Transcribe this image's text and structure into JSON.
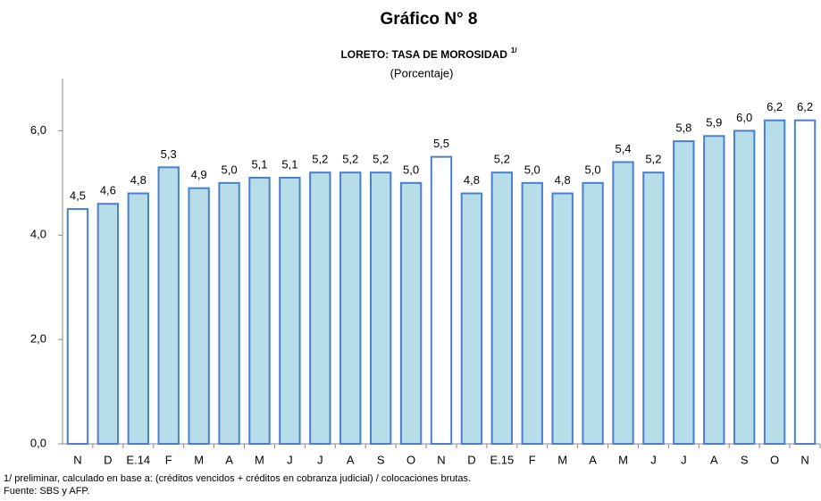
{
  "chart_data": {
    "type": "bar",
    "title": "Gráfico N° 8",
    "subtitle": "LORETO: TASA DE MOROSIDAD",
    "subtitle_note": "1/",
    "unit_label": "(Porcentaje)",
    "categories": [
      "N",
      "D",
      "E.14",
      "F",
      "M",
      "A",
      "M",
      "J",
      "J",
      "A",
      "S",
      "O",
      "N",
      "D",
      "E.15",
      "F",
      "M",
      "A",
      "M",
      "J",
      "J",
      "A",
      "S",
      "O",
      "N"
    ],
    "values": [
      4.5,
      4.6,
      4.8,
      5.3,
      4.9,
      5.0,
      5.1,
      5.1,
      5.2,
      5.2,
      5.2,
      5.0,
      5.5,
      4.8,
      5.2,
      5.0,
      4.8,
      5.0,
      5.4,
      5.2,
      5.8,
      5.9,
      6.0,
      6.2,
      6.2
    ],
    "value_labels": [
      "4,5",
      "4,6",
      "4,8",
      "5,3",
      "4,9",
      "5,0",
      "5,1",
      "5,1",
      "5,2",
      "5,2",
      "5,2",
      "5,0",
      "5,5",
      "4,8",
      "5,2",
      "5,0",
      "4,8",
      "5,0",
      "5,4",
      "5,2",
      "5,8",
      "5,9",
      "6,0",
      "6,2",
      "6,2"
    ],
    "colors": [
      "#ffffff",
      "#b7dde8",
      "#b7dde8",
      "#b7dde8",
      "#b7dde8",
      "#b7dde8",
      "#b7dde8",
      "#b7dde8",
      "#b7dde8",
      "#b7dde8",
      "#b7dde8",
      "#b7dde8",
      "#ffffff",
      "#b7dde8",
      "#b7dde8",
      "#b7dde8",
      "#b7dde8",
      "#b7dde8",
      "#b7dde8",
      "#b7dde8",
      "#b7dde8",
      "#b7dde8",
      "#b7dde8",
      "#b7dde8",
      "#ffffff"
    ],
    "edge_color": "#4a7fd0",
    "ylim": [
      0,
      7
    ],
    "yticks": [
      {
        "value": 0,
        "label": "0,0"
      },
      {
        "value": 2,
        "label": "2,0"
      },
      {
        "value": 4,
        "label": "4,0"
      },
      {
        "value": 6,
        "label": "6,0"
      }
    ],
    "grid": false,
    "footnotes": [
      "1/ preliminar, calculado en base a: (créditos vencidos + créditos en cobranza judicial) / colocaciones brutas.",
      "Fuente: SBS  y AFP."
    ]
  }
}
